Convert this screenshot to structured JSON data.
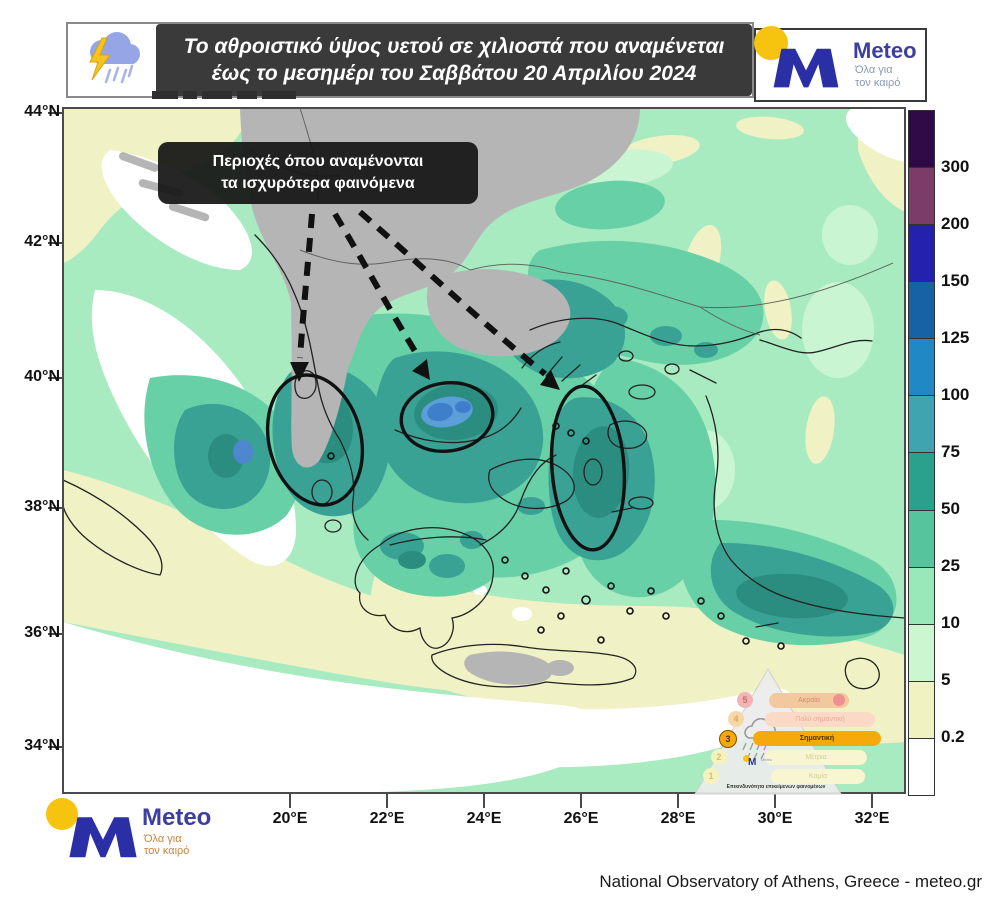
{
  "banner": {
    "title_line1": "Το αθροιστικό ύψος υετού σε χιλιοστά που αναμένεται",
    "title_line2": "έως το μεσημέρι του Σαββάτου 20 Απριλίου 2024"
  },
  "logo": {
    "name": "Meteo",
    "tagline_line1": "Όλα για",
    "tagline_line2": "τον καιρό"
  },
  "annotation": {
    "line1": "Περιοχές όπου αναμένονται",
    "line2": "τα ισχυρότερα φαινόμενα"
  },
  "axes": {
    "lat_ticks": [
      "44°N",
      "42°N",
      "40°N",
      "38°N",
      "36°N",
      "34°N"
    ],
    "lon_ticks": [
      "20°E",
      "22°E",
      "24°E",
      "26°E",
      "28°E",
      "30°E",
      "32°E"
    ]
  },
  "colorbar": {
    "labels": [
      "300",
      "200",
      "150",
      "125",
      "100",
      "75",
      "50",
      "25",
      "10",
      "5",
      "0.2"
    ],
    "colors": [
      "#2f0a47",
      "#7b3c6a",
      "#2421af",
      "#1761a5",
      "#2089c5",
      "#3fa3b0",
      "#2aa18c",
      "#55c59e",
      "#98e8ba",
      "#ccf6d0",
      "#f0f2c2",
      "#ffffff"
    ]
  },
  "map_colors": {
    "sea_light_green": "#a8ebc1",
    "pale_yellow": "#f0f2c5",
    "mint": "#c9f5d2",
    "medium_green": "#68d0a7",
    "teal": "#3aa295",
    "dark_teal": "#2b8d80",
    "blue_light": "#5b9fd8",
    "blue": "#3f7ecb",
    "no_data_gray": "#b5b5b5"
  },
  "severity": {
    "caption": "Επικινδυνότητα επικείμενων φαινομένων",
    "active_level": "3",
    "levels": [
      {
        "num": "5",
        "label": "Ακραία"
      },
      {
        "num": "4",
        "label": "Πολύ σημαντική"
      },
      {
        "num": "3",
        "label": "Σημαντική"
      },
      {
        "num": "2",
        "label": "Μέτρια"
      },
      {
        "num": "1",
        "label": "Καμία"
      }
    ]
  },
  "legend_scale_mm": [
    0.2,
    5,
    10,
    25,
    50,
    75,
    100,
    125,
    150,
    200,
    300
  ],
  "footer": {
    "attribution": "National Observatory of Athens, Greece - meteo.gr"
  }
}
